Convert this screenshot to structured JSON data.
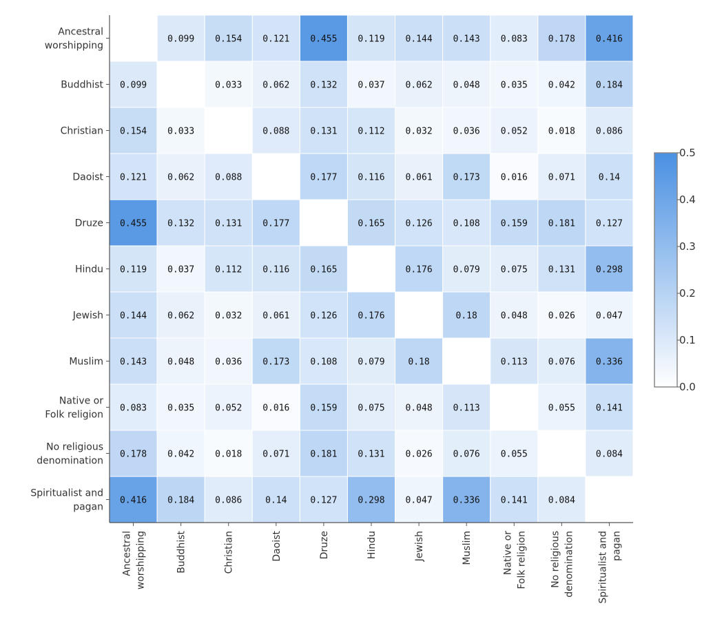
{
  "chart_data": {
    "type": "heatmap",
    "labels": [
      "Ancestral worshipping",
      "Buddhist",
      "Christian",
      "Daoist",
      "Druze",
      "Hindu",
      "Jewish",
      "Muslim",
      "Native or Folk religion",
      "No religious denomination",
      "Spiritualist and pagan"
    ],
    "label_lines": [
      [
        "Ancestral",
        "worshipping"
      ],
      [
        "Buddhist"
      ],
      [
        "Christian"
      ],
      [
        "Daoist"
      ],
      [
        "Druze"
      ],
      [
        "Hindu"
      ],
      [
        "Jewish"
      ],
      [
        "Muslim"
      ],
      [
        "Native or",
        "Folk religion"
      ],
      [
        "No religious",
        "denomination"
      ],
      [
        "Spiritualist and",
        "pagan"
      ]
    ],
    "matrix": [
      [
        null,
        "0.099",
        "0.154",
        "0.121",
        "0.455",
        "0.119",
        "0.144",
        "0.143",
        "0.083",
        "0.178",
        "0.416"
      ],
      [
        "0.099",
        null,
        "0.033",
        "0.062",
        "0.132",
        "0.037",
        "0.062",
        "0.048",
        "0.035",
        "0.042",
        "0.184"
      ],
      [
        "0.154",
        "0.033",
        null,
        "0.088",
        "0.131",
        "0.112",
        "0.032",
        "0.036",
        "0.052",
        "0.018",
        "0.086"
      ],
      [
        "0.121",
        "0.062",
        "0.088",
        null,
        "0.177",
        "0.116",
        "0.061",
        "0.173",
        "0.016",
        "0.071",
        "0.14"
      ],
      [
        "0.455",
        "0.132",
        "0.131",
        "0.177",
        null,
        "0.165",
        "0.126",
        "0.108",
        "0.159",
        "0.181",
        "0.127"
      ],
      [
        "0.119",
        "0.037",
        "0.112",
        "0.116",
        "0.165",
        null,
        "0.176",
        "0.079",
        "0.075",
        "0.131",
        "0.298"
      ],
      [
        "0.144",
        "0.062",
        "0.032",
        "0.061",
        "0.126",
        "0.176",
        null,
        "0.18",
        "0.048",
        "0.026",
        "0.047"
      ],
      [
        "0.143",
        "0.048",
        "0.036",
        "0.173",
        "0.108",
        "0.079",
        "0.18",
        null,
        "0.113",
        "0.076",
        "0.336"
      ],
      [
        "0.083",
        "0.035",
        "0.052",
        "0.016",
        "0.159",
        "0.075",
        "0.048",
        "0.113",
        null,
        "0.055",
        "0.141"
      ],
      [
        "0.178",
        "0.042",
        "0.018",
        "0.071",
        "0.181",
        "0.131",
        "0.026",
        "0.076",
        "0.055",
        null,
        "0.084"
      ],
      [
        "0.416",
        "0.184",
        "0.086",
        "0.14",
        "0.127",
        "0.298",
        "0.047",
        "0.336",
        "0.141",
        "0.084",
        null
      ]
    ],
    "colorscale": {
      "min": 0.0,
      "max": 0.5,
      "low_color": "#ffffff",
      "high_color": "#4a90e2"
    },
    "colorbar_ticks": [
      "0.5",
      "0.4",
      "0.3",
      "0.2",
      "0.1",
      "0.0"
    ],
    "title": "",
    "xlabel": "",
    "ylabel": "",
    "grid": false
  }
}
